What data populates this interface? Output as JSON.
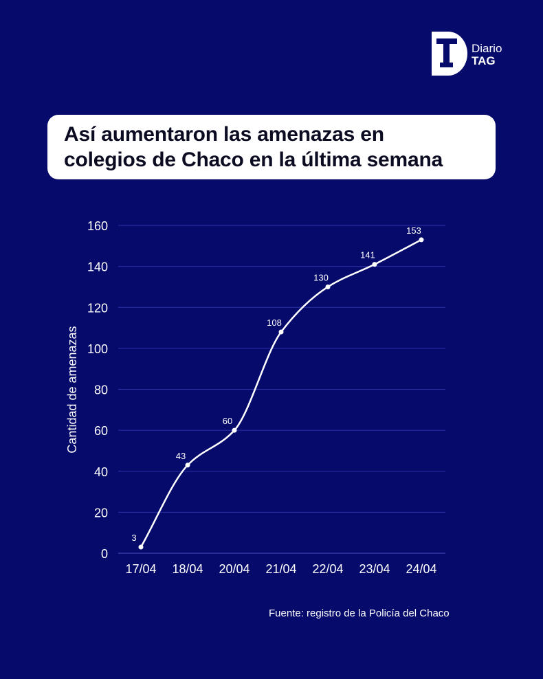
{
  "brand": {
    "line1": "Diario",
    "line2": "TAG"
  },
  "title": {
    "line1": "Así aumentaron las amenazas en",
    "line2": "colegios de Chaco en la última semana"
  },
  "source": "Fuente: registro de la Policía del Chaco",
  "colors": {
    "background": "#060A6B",
    "line": "#FFFFFF",
    "grid": "#2B32A8",
    "text": "#FFFFFF"
  },
  "chart_data": {
    "type": "line",
    "categories": [
      "17/04",
      "18/04",
      "20/04",
      "21/04",
      "22/04",
      "23/04",
      "24/04"
    ],
    "series": [
      {
        "values": [
          3,
          43,
          60,
          108,
          130,
          141,
          153
        ]
      }
    ],
    "data_labels": [
      "3",
      "43",
      "60",
      "108",
      "130",
      "141",
      "153"
    ],
    "ylabel": "Cantidad de amenazas",
    "ylim": [
      0,
      160
    ],
    "yticks": [
      0,
      20,
      40,
      60,
      80,
      100,
      120,
      140,
      160
    ],
    "grid": true,
    "smooth": true
  }
}
